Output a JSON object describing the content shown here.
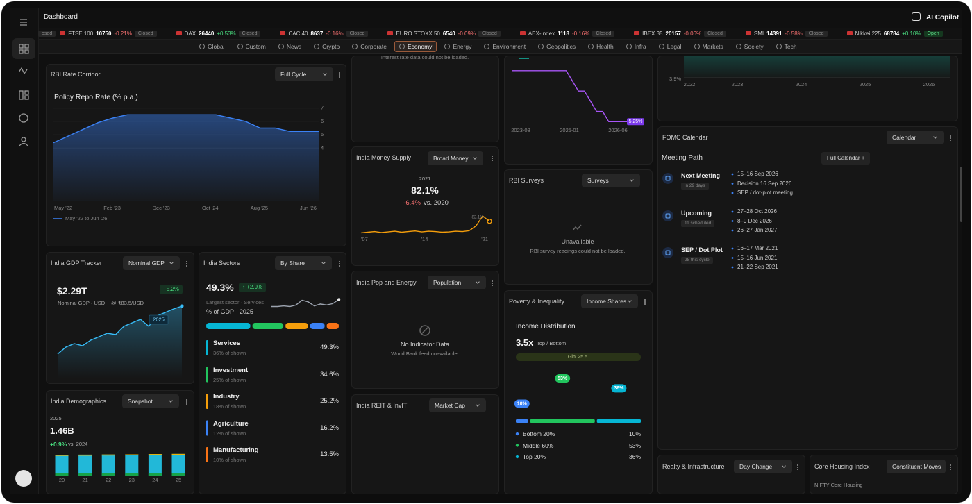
{
  "header": {
    "title": "Dashboard",
    "copilot": "AI Copilot"
  },
  "ticker": {
    "lead": "osed",
    "items": [
      {
        "name": "FTSE 100",
        "value": "10750",
        "change": "-0.21%",
        "status": "Closed"
      },
      {
        "name": "DAX",
        "value": "26440",
        "change": "+0.53%",
        "status": "Closed"
      },
      {
        "name": "CAC 40",
        "value": "8637",
        "change": "-0.16%",
        "status": "Closed"
      },
      {
        "name": "EURO STOXX 50",
        "value": "6540",
        "change": "-0.09%",
        "status": "Closed"
      },
      {
        "name": "AEX-Index",
        "value": "1118",
        "change": "-0.16%",
        "status": "Closed"
      },
      {
        "name": "IBEX 35",
        "value": "20157",
        "change": "-0.06%",
        "status": "Closed"
      },
      {
        "name": "SMI",
        "value": "14391",
        "change": "-0.58%",
        "status": "Closed"
      },
      {
        "name": "Nikkei 225",
        "value": "68784",
        "change": "+0.10%",
        "status": "Open"
      }
    ]
  },
  "tabs": {
    "active": 5,
    "items": [
      "Global",
      "Custom",
      "News",
      "Crypto",
      "Corporate",
      "Economy",
      "Energy",
      "Environment",
      "Geopolitics",
      "Health",
      "Infra",
      "Legal",
      "Markets",
      "Society",
      "Tech"
    ]
  },
  "rbi": {
    "title": "RBI Rate Corridor",
    "control": "Full Cycle",
    "chart_title": "Policy Repo Rate (% p.a.)",
    "xticks": [
      "May '22",
      "Feb '23",
      "Dec '23",
      "Oct '24",
      "Aug '25",
      "Jun '26"
    ],
    "ylim": [
      0,
      7.3
    ],
    "yticks": [
      7,
      6,
      5,
      4
    ],
    "color": "#3b82f6",
    "legend": "May '22 to Jun '26",
    "values": [
      4.4,
      4.9,
      5.4,
      5.9,
      6.25,
      6.5,
      6.5,
      6.5,
      6.5,
      6.5,
      6.5,
      6.5,
      6.25,
      6.0,
      5.5,
      5.5,
      5.25,
      5.25,
      5.25
    ]
  },
  "gdp": {
    "title": "India GDP Tracker",
    "control": "Nominal GDP",
    "value": "$2.29T",
    "change": "+5.2%",
    "caption": "Nominal GDP · USD",
    "rate": "@ ₹83.5/USD",
    "marker": "2025",
    "ylim": [
      1.4,
      2.5
    ],
    "color": "#38bdf8",
    "values": [
      1.6,
      1.7,
      1.75,
      1.72,
      1.8,
      1.85,
      1.9,
      1.88,
      2.0,
      2.05,
      2.1,
      2.0,
      2.15,
      2.2,
      2.25,
      2.29
    ]
  },
  "sectors": {
    "title": "India Sectors",
    "control": "By Share",
    "value": "49.3%",
    "change": "↑ +2.9%",
    "caption": "Largest sector · Services",
    "subtitle": "% of GDP · 2025",
    "spark": {
      "ylim": [
        0,
        6
      ],
      "values": [
        3,
        3,
        3.2,
        3,
        3.5,
        5,
        4.5,
        3.2,
        3.8,
        3.5,
        3.9,
        5.2
      ]
    },
    "items": [
      {
        "name": "Services",
        "shown": "36% of shown",
        "value": 49.3,
        "value_label": "49.3%",
        "color": "#06b6d4"
      },
      {
        "name": "Investment",
        "shown": "25% of shown",
        "value": 34.6,
        "value_label": "34.6%",
        "color": "#22c55e"
      },
      {
        "name": "Industry",
        "shown": "18% of shown",
        "value": 25.2,
        "value_label": "25.2%",
        "color": "#f59e0b"
      },
      {
        "name": "Agriculture",
        "shown": "12% of shown",
        "value": 16.2,
        "value_label": "16.2%",
        "color": "#3b82f6"
      },
      {
        "name": "Manufacturing",
        "shown": "10% of shown",
        "value": 13.5,
        "value_label": "13.5%",
        "color": "#f97316"
      }
    ]
  },
  "demo": {
    "title": "India Demographics",
    "control": "Snapshot",
    "year": "2025",
    "value": "1.46B",
    "change": "+0.9%",
    "compare": "vs. 2024",
    "categories": [
      "20",
      "21",
      "22",
      "23",
      "24",
      "25"
    ],
    "values": [
      1.4,
      1.41,
      1.42,
      1.43,
      1.45,
      1.46
    ],
    "ylim": [
      0,
      1.5
    ],
    "color": "#22b8d8"
  },
  "rates_panel": {
    "message": "Interest rate data could not be loaded."
  },
  "money": {
    "title": "India Money Supply",
    "control": "Broad Money",
    "year": "2021",
    "headline": "82.1%",
    "change": "-6.4%",
    "compare": "vs. 2020",
    "xticks": [
      "'07",
      "'14",
      "'21"
    ],
    "ylim": [
      0,
      100
    ],
    "color": "#f59e0b",
    "values": [
      28,
      30,
      32,
      29,
      31,
      33,
      30,
      32,
      34,
      31,
      33,
      32,
      30,
      31,
      33,
      32,
      35,
      50,
      82.1,
      65
    ]
  },
  "pop": {
    "title": "India Pop and Energy",
    "control": "Population",
    "empty": "No Indicator Data",
    "note": "World Bank feed unavailable."
  },
  "reit": {
    "title": "India REIT & InvIT",
    "control": "Market Cap"
  },
  "step": {
    "xticks": [
      "2023-08",
      "2025-01",
      "2026-06"
    ],
    "ylim": [
      5,
      6.7
    ],
    "color": "#a855f7",
    "end_label": "5.25%",
    "values": [
      6.5,
      6.5,
      6.5,
      6.5,
      6.5,
      6.5,
      6.5,
      6.5,
      6.5,
      6.5,
      6.25,
      6.0,
      6.0,
      5.75,
      5.5,
      5.5,
      5.25,
      5.25,
      5.25,
      5.25
    ]
  },
  "surveys": {
    "title": "RBI Surveys",
    "control": "Surveys",
    "empty": "Unavailable",
    "note": "RBI survey readings could not be loaded."
  },
  "poverty": {
    "title": "Poverty & Inequality",
    "control": "Income Shares",
    "heading": "Income Distribution",
    "ratio": "3.5x",
    "ratio_label": "Top / Bottom",
    "gini": "Gini 25.5",
    "items": [
      {
        "name": "Bottom 20%",
        "value": 10,
        "value_label": "10%",
        "color": "#3b82f6"
      },
      {
        "name": "Middle 60%",
        "value": 53,
        "value_label": "53%",
        "color": "#22c55e"
      },
      {
        "name": "Top 20%",
        "value": 36,
        "value_label": "36%",
        "color": "#06b6d4"
      }
    ]
  },
  "global_panel": {
    "ylabel": "3.9%",
    "xticks": [
      "2022",
      "2023",
      "2024",
      "2025",
      "2026"
    ]
  },
  "fomc": {
    "title": "FOMC Calendar",
    "control": "Calendar",
    "heading": "Meeting Path",
    "button": "Full Calendar +",
    "groups": [
      {
        "name": "Next Meeting",
        "badge": "in 29 days",
        "items": [
          "15–16 Sep 2026",
          "Decision 16 Sep 2026",
          "SEP / dot-plot meeting"
        ]
      },
      {
        "name": "Upcoming",
        "badge": "11 scheduled",
        "items": [
          "27–28 Oct 2026",
          "8–9 Dec 2026",
          "26–27 Jan 2027"
        ]
      },
      {
        "name": "SEP / Dot Plot",
        "badge": "28 this cycle",
        "items": [
          "16–17 Mar 2021",
          "15–16 Jun 2021",
          "21–22 Sep 2021"
        ]
      }
    ]
  },
  "realty": {
    "title": "Realty & Infrastructure",
    "control": "Day Change"
  },
  "housing": {
    "title": "Core Housing Index",
    "control": "Constituent Moves",
    "note": "NIFTY Core Housing"
  }
}
